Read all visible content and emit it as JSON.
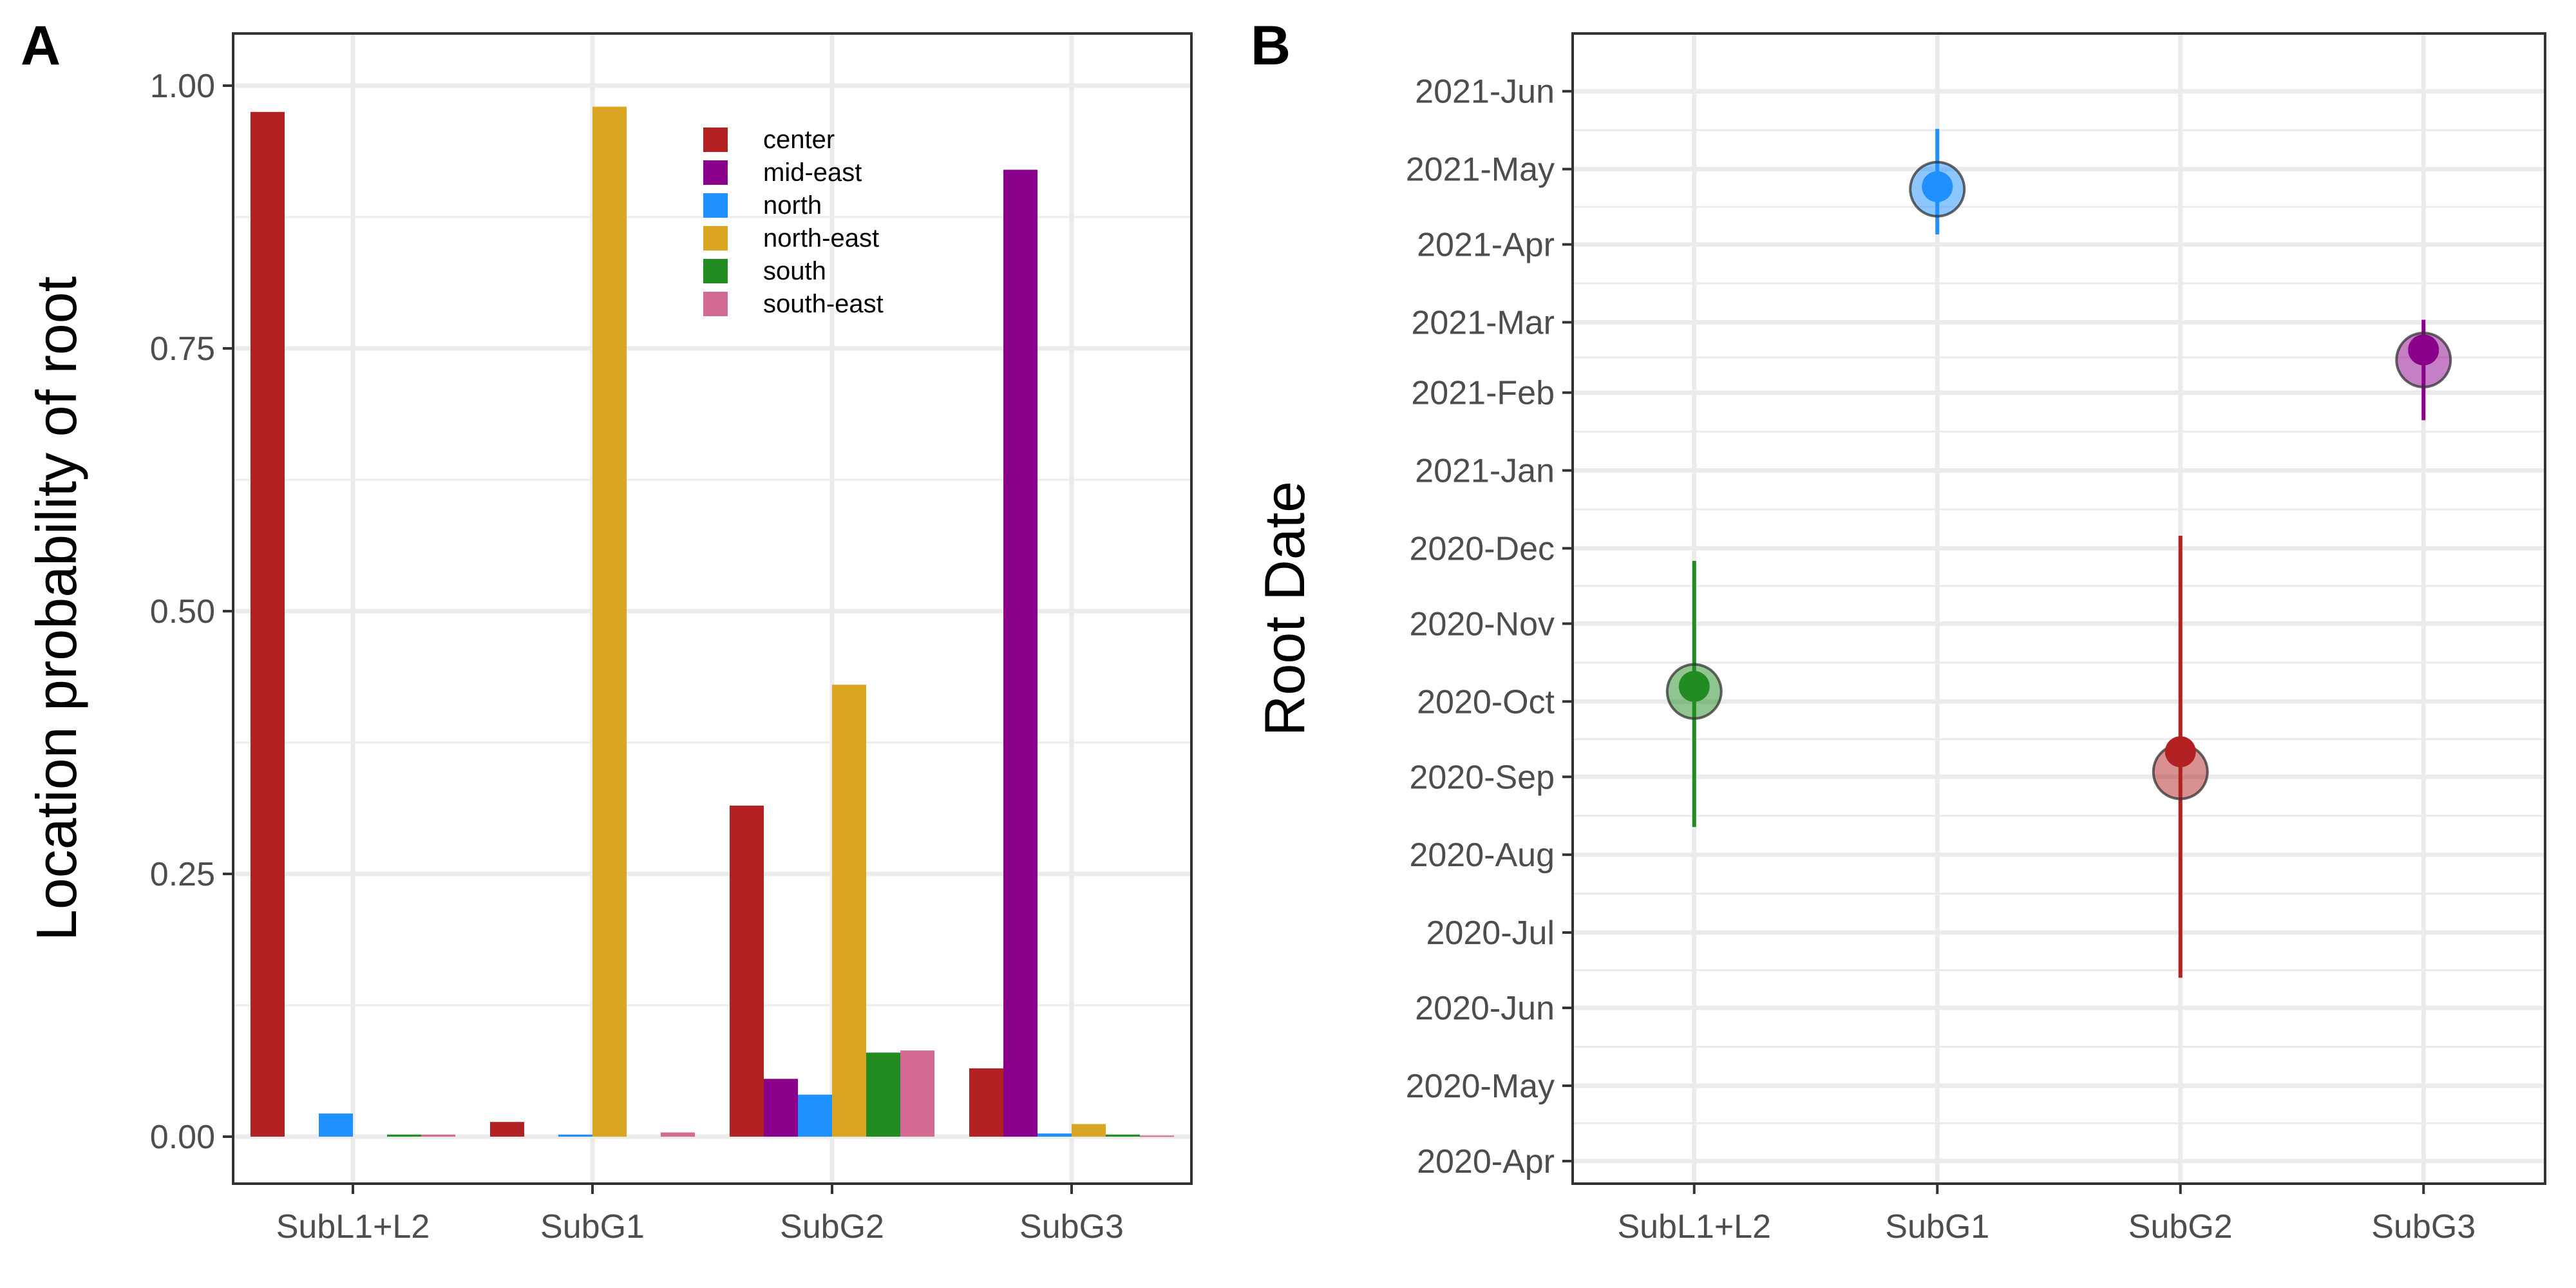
{
  "colors": {
    "center": "#B22222",
    "mid-east": "#8B008B",
    "north": "#1E90FF",
    "north-east": "#DAA520",
    "south": "#228B22",
    "south-east": "#D36A94"
  },
  "panels": {
    "a": {
      "tag": "A"
    },
    "b": {
      "tag": "B"
    }
  },
  "chart_data": [
    {
      "type": "bar",
      "panel": "A",
      "ylabel": "Location probability of root",
      "xlabel": "",
      "ylim": [
        0,
        1.05
      ],
      "yticks": [
        "0.00",
        "0.25",
        "0.50",
        "0.75",
        "1.00"
      ],
      "categories": [
        "SubL1+L2",
        "SubG1",
        "SubG2",
        "SubG3"
      ],
      "grid": true,
      "legend": {
        "placement": "top-center inside"
      },
      "series": [
        {
          "name": "center",
          "values": [
            0.975,
            0.014,
            0.315,
            0.065
          ]
        },
        {
          "name": "mid-east",
          "values": [
            0.0,
            0.0,
            0.055,
            0.92
          ]
        },
        {
          "name": "north",
          "values": [
            0.022,
            0.002,
            0.04,
            0.003
          ]
        },
        {
          "name": "north-east",
          "values": [
            0.0,
            0.98,
            0.43,
            0.012
          ]
        },
        {
          "name": "south",
          "values": [
            0.002,
            0.0,
            0.08,
            0.002
          ]
        },
        {
          "name": "south-east",
          "values": [
            0.002,
            0.004,
            0.082,
            0.001
          ]
        }
      ]
    },
    {
      "type": "scatter",
      "panel": "B",
      "ylabel": "Root Date",
      "xlabel": "",
      "categories": [
        "SubL1+L2",
        "SubG1",
        "SubG2",
        "SubG3"
      ],
      "yticks": [
        "2020-Apr",
        "2020-May",
        "2020-Jun",
        "2020-Jul",
        "2020-Aug",
        "2020-Sep",
        "2020-Oct",
        "2020-Nov",
        "2020-Dec",
        "2021-Jan",
        "2021-Feb",
        "2021-Mar",
        "2021-Apr",
        "2021-May",
        "2021-Jun"
      ],
      "ylim": [
        "2020-03-23",
        "2021-06-24"
      ],
      "grid": true,
      "points": [
        {
          "category": "SubL1+L2",
          "location": "south",
          "median": "2020-10-07",
          "mean": "2020-10-05",
          "lower": "2020-08-12",
          "upper": "2020-11-26"
        },
        {
          "category": "SubG1",
          "location": "north",
          "median": "2021-04-24",
          "mean": "2021-04-23",
          "lower": "2021-04-05",
          "upper": "2021-05-17"
        },
        {
          "category": "SubG2",
          "location": "center",
          "median": "2020-09-11",
          "mean": "2020-09-03",
          "lower": "2020-06-13",
          "upper": "2020-12-06"
        },
        {
          "category": "SubG3",
          "location": "mid-east",
          "median": "2021-02-18",
          "mean": "2021-02-14",
          "lower": "2021-01-21",
          "upper": "2021-03-02"
        }
      ]
    }
  ]
}
